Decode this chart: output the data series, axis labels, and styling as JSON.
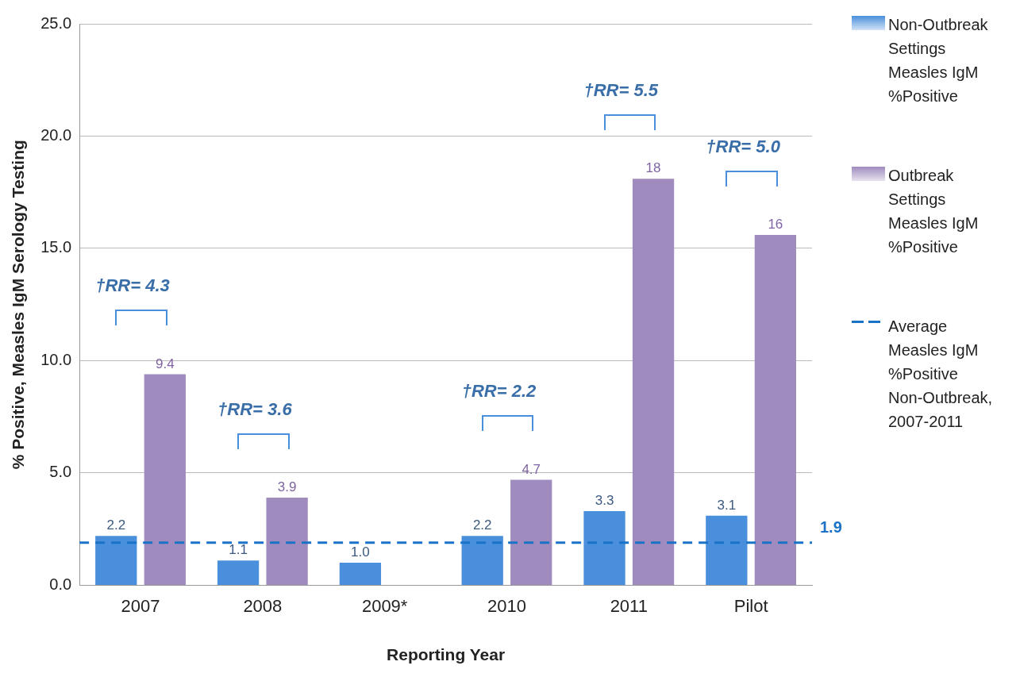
{
  "chart_data": {
    "type": "bar",
    "xlabel": "Reporting Year",
    "ylabel": "% Positive, Measles IgM Serology Testing",
    "categories": [
      "2007",
      "2008",
      "2009*",
      "2010",
      "2011",
      "Pilot"
    ],
    "series": [
      {
        "name": "Non-Outbreak Settings Measles IgM %Positive",
        "color": "#4a8fdc",
        "values": [
          2.2,
          1.1,
          1.0,
          2.2,
          3.3,
          3.1
        ],
        "value_labels": [
          "2.2",
          "1.1",
          "1.0",
          "2.2",
          "3.3",
          "3.1"
        ]
      },
      {
        "name": "Outbreak Settings Measles IgM %Positive",
        "color": "#a08bbe",
        "values": [
          9.4,
          3.9,
          null,
          4.7,
          18.1,
          15.6
        ],
        "value_labels": [
          "9.4",
          "3.9",
          null,
          "4.7",
          "18",
          "16"
        ]
      }
    ],
    "ylim": [
      0,
      25
    ],
    "yticks": [
      {
        "value": 0,
        "label": "0.0"
      },
      {
        "value": 5,
        "label": "5.0"
      },
      {
        "value": 10,
        "label": "10.0"
      },
      {
        "value": 15,
        "label": "15.0"
      },
      {
        "value": 20,
        "label": "20.0"
      },
      {
        "value": 25,
        "label": "25.0"
      }
    ],
    "grid": "y",
    "legend": "right",
    "ref_lines": [
      {
        "axis": "y",
        "value": 1.9,
        "label": "Average Measles IgM %Positive Non-Outbreak, 2007-2011",
        "color": "#1a73c6",
        "line_style": "dashed"
      }
    ],
    "annotations": [
      "†RR= 4.3",
      "†RR= 3.6",
      "†RR= 2.2",
      "†RR= 5.5",
      "†RR= 5.0",
      "1.9"
    ]
  }
}
